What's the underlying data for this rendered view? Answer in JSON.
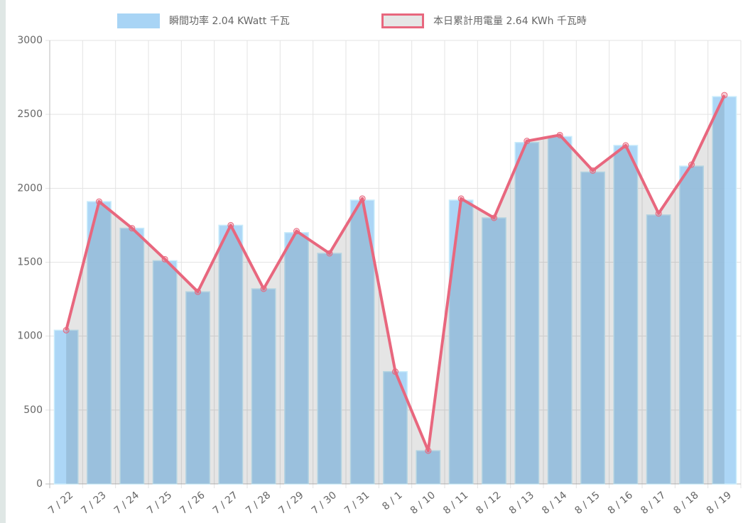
{
  "chart_data": {
    "type": "bar",
    "categories": [
      "7 / 22",
      "7 / 23",
      "7 / 24",
      "7 / 25",
      "7 / 26",
      "7 / 27",
      "7 / 28",
      "7 / 29",
      "7 / 30",
      "7 / 31",
      "8 / 1",
      "8 / 10",
      "8 / 11",
      "8 / 12",
      "8 / 13",
      "8 / 14",
      "8 / 15",
      "8 / 16",
      "8 / 17",
      "8 / 18",
      "8 / 19"
    ],
    "series": [
      {
        "name": "瞬間功率 2.04 KWatt 千瓦",
        "type": "bar",
        "color": "#a8d4f5",
        "values": [
          1040,
          1910,
          1730,
          1510,
          1300,
          1750,
          1320,
          1700,
          1560,
          1920,
          760,
          225,
          1920,
          1800,
          2310,
          2350,
          2110,
          2290,
          1820,
          2150,
          2620
        ]
      },
      {
        "name": "本日累計用電量 2.64 KWh 千瓦時",
        "type": "line",
        "color": "#e8677e",
        "values": [
          1040,
          1910,
          1730,
          1520,
          1300,
          1750,
          1320,
          1710,
          1560,
          1930,
          760,
          225,
          1930,
          1800,
          2320,
          2360,
          2120,
          2290,
          1830,
          2160,
          2630
        ]
      }
    ],
    "ylim": [
      0,
      3000
    ],
    "yticks": [
      0,
      500,
      1000,
      1500,
      2000,
      2500,
      3000
    ],
    "grid": true,
    "legend": "top"
  }
}
